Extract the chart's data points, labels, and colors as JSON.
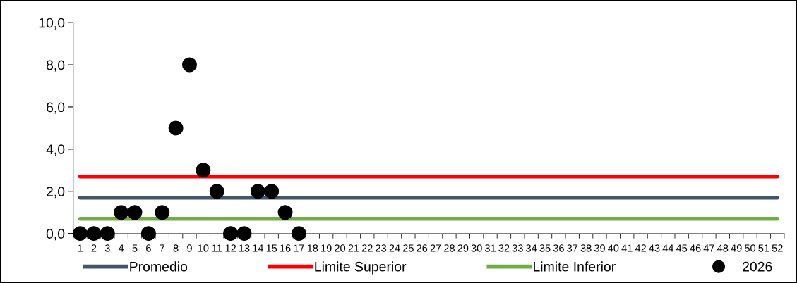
{
  "chart_data": {
    "type": "line",
    "categories": [
      "1",
      "2",
      "3",
      "4",
      "5",
      "6",
      "7",
      "8",
      "9",
      "10",
      "11",
      "12",
      "13",
      "14",
      "15",
      "16",
      "17",
      "18",
      "19",
      "20",
      "21",
      "22",
      "23",
      "24",
      "25",
      "26",
      "27",
      "28",
      "29",
      "30",
      "31",
      "32",
      "33",
      "34",
      "35",
      "36",
      "37",
      "38",
      "39",
      "40",
      "41",
      "42",
      "43",
      "44",
      "45",
      "46",
      "47",
      "48",
      "49",
      "50",
      "51",
      "52"
    ],
    "series": [
      {
        "name": "Promedio",
        "color": "#44546a",
        "values": [
          1.7,
          1.7,
          1.7,
          1.7,
          1.7,
          1.7,
          1.7,
          1.7,
          1.7,
          1.7,
          1.7,
          1.7,
          1.7,
          1.7,
          1.7,
          1.7,
          1.7,
          1.7,
          1.7,
          1.7,
          1.7,
          1.7,
          1.7,
          1.7,
          1.7,
          1.7,
          1.7,
          1.7,
          1.7,
          1.7,
          1.7,
          1.7,
          1.7,
          1.7,
          1.7,
          1.7,
          1.7,
          1.7,
          1.7,
          1.7,
          1.7,
          1.7,
          1.7,
          1.7,
          1.7,
          1.7,
          1.7,
          1.7,
          1.7,
          1.7,
          1.7,
          1.7
        ]
      },
      {
        "name": "Limite Superior",
        "color": "#ff0000",
        "values": [
          2.7,
          2.7,
          2.7,
          2.7,
          2.7,
          2.7,
          2.7,
          2.7,
          2.7,
          2.7,
          2.7,
          2.7,
          2.7,
          2.7,
          2.7,
          2.7,
          2.7,
          2.7,
          2.7,
          2.7,
          2.7,
          2.7,
          2.7,
          2.7,
          2.7,
          2.7,
          2.7,
          2.7,
          2.7,
          2.7,
          2.7,
          2.7,
          2.7,
          2.7,
          2.7,
          2.7,
          2.7,
          2.7,
          2.7,
          2.7,
          2.7,
          2.7,
          2.7,
          2.7,
          2.7,
          2.7,
          2.7,
          2.7,
          2.7,
          2.7,
          2.7,
          2.7
        ]
      },
      {
        "name": "Limite Inferior",
        "color": "#70ad47",
        "values": [
          0.7,
          0.7,
          0.7,
          0.7,
          0.7,
          0.7,
          0.7,
          0.7,
          0.7,
          0.7,
          0.7,
          0.7,
          0.7,
          0.7,
          0.7,
          0.7,
          0.7,
          0.7,
          0.7,
          0.7,
          0.7,
          0.7,
          0.7,
          0.7,
          0.7,
          0.7,
          0.7,
          0.7,
          0.7,
          0.7,
          0.7,
          0.7,
          0.7,
          0.7,
          0.7,
          0.7,
          0.7,
          0.7,
          0.7,
          0.7,
          0.7,
          0.7,
          0.7,
          0.7,
          0.7,
          0.7,
          0.7,
          0.7,
          0.7,
          0.7,
          0.7,
          0.7
        ]
      },
      {
        "name": "2026",
        "type": "scatter",
        "marker": "circle",
        "color": "#000000",
        "values": [
          0,
          0,
          0,
          1,
          1,
          0,
          1,
          5,
          8,
          3,
          2,
          0,
          0,
          2,
          2,
          1,
          0,
          null,
          null,
          null,
          null,
          null,
          null,
          null,
          null,
          null,
          null,
          null,
          null,
          null,
          null,
          null,
          null,
          null,
          null,
          null,
          null,
          null,
          null,
          null,
          null,
          null,
          null,
          null,
          null,
          null,
          null,
          null,
          null,
          null,
          null,
          null
        ]
      }
    ],
    "ylim": [
      0,
      10
    ],
    "yticks": [
      {
        "value": 0,
        "label": "0,0"
      },
      {
        "value": 2,
        "label": "2,0"
      },
      {
        "value": 4,
        "label": "4,0"
      },
      {
        "value": 6,
        "label": "6,0"
      },
      {
        "value": 8,
        "label": "8,0"
      },
      {
        "value": 10,
        "label": "10,0"
      }
    ],
    "grid": false,
    "legend": "bottom"
  }
}
